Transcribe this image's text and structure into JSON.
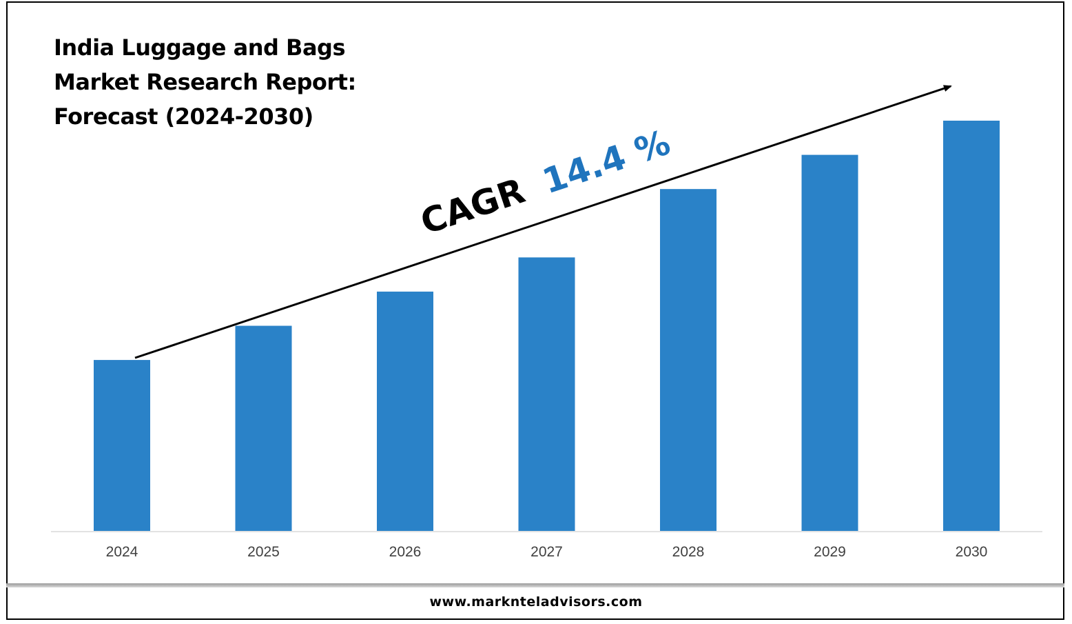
{
  "title_lines": [
    "India Luggage and Bags",
    "Market Research Report:",
    "Forecast (2024-2030)"
  ],
  "cagr": {
    "label": "CAGR",
    "value": "14.4 %"
  },
  "footer": {
    "url": "www.marknteladvisors.com"
  },
  "colors": {
    "bar": "#2a82c8",
    "cagr_value": "#1f74bd",
    "text": "#000000",
    "tick": "#404040",
    "axis": "#d9d9d9"
  },
  "chart_data": {
    "type": "bar",
    "title": "India Luggage and Bags Market Research Report: Forecast (2024-2030)",
    "categories": [
      "2024",
      "2025",
      "2026",
      "2027",
      "2028",
      "2029",
      "2030"
    ],
    "values": [
      100,
      120,
      140,
      160,
      200,
      220,
      240
    ],
    "ylim": [
      0,
      240
    ],
    "xlabel": "",
    "ylabel": "",
    "grid": false,
    "legend": "none",
    "annotations": [
      "CAGR 14.4 %"
    ]
  }
}
